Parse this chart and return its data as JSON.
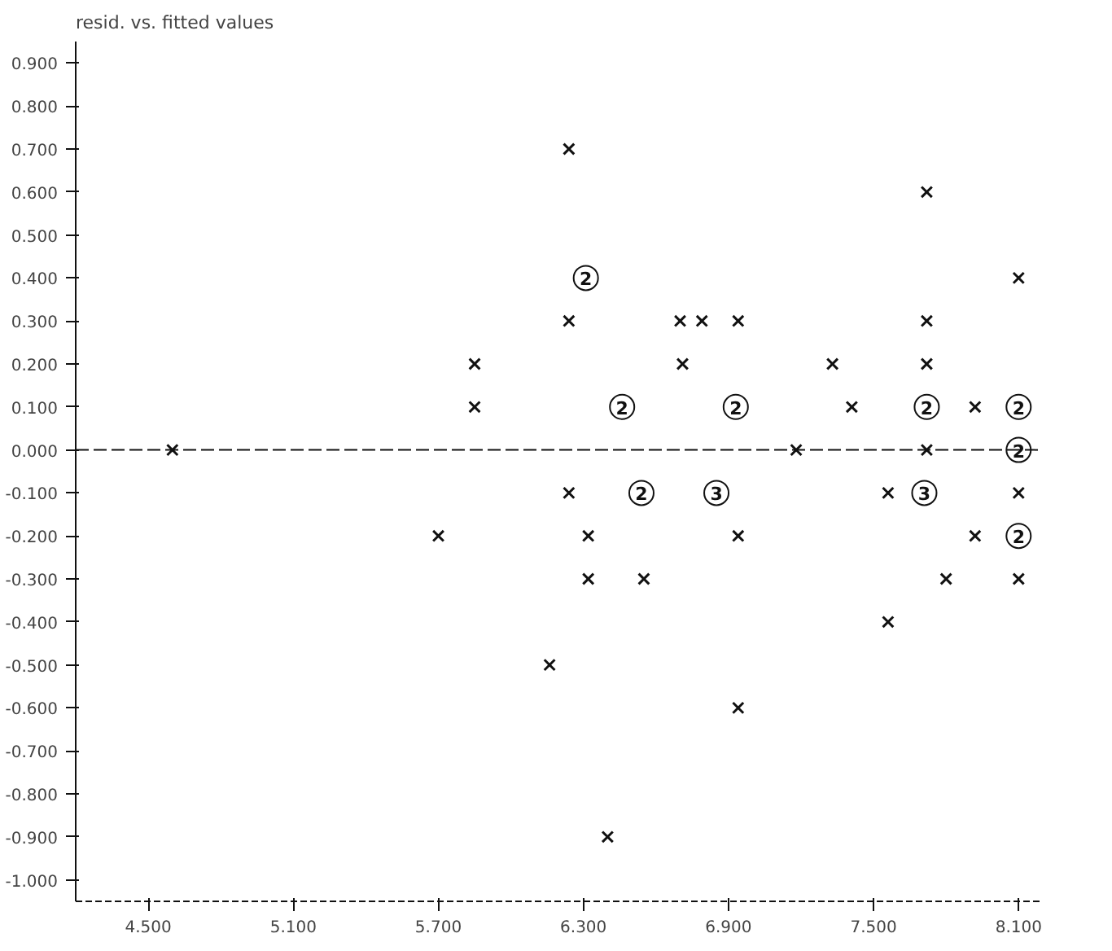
{
  "chart_data": {
    "type": "scatter",
    "title": "resid. vs. fitted values",
    "series": [
      {
        "color": "#111111",
        "marker": "cross",
        "x": [
          4.6,
          5.7,
          5.85,
          5.85,
          6.16,
          6.24,
          6.24,
          6.24,
          6.32,
          6.32,
          6.4,
          6.55,
          6.7,
          6.71,
          6.79,
          6.94,
          6.94,
          6.94,
          7.18,
          7.33,
          7.41,
          7.56,
          7.56,
          7.72,
          7.72,
          7.72,
          7.72,
          7.8,
          7.92,
          7.92,
          8.1,
          8.1,
          8.1
        ],
        "values": [
          0.0,
          -0.2,
          0.2,
          0.1,
          -0.5,
          0.7,
          0.3,
          -0.1,
          -0.2,
          -0.3,
          -0.9,
          -0.3,
          0.3,
          0.2,
          0.3,
          0.3,
          -0.2,
          -0.6,
          0.0,
          0.2,
          0.1,
          -0.1,
          -0.4,
          0.6,
          0.3,
          0.2,
          0.0,
          -0.3,
          0.1,
          -0.2,
          0.4,
          -0.1,
          -0.3
        ]
      },
      {
        "color": "#111111",
        "marker": "circle",
        "x": [
          6.31,
          6.46,
          6.93,
          7.72,
          8.1,
          8.1,
          6.54,
          6.85,
          7.71,
          8.1
        ],
        "values": [
          0.4,
          0.1,
          0.1,
          0.1,
          0.1,
          0.0,
          -0.1,
          -0.1,
          -0.1,
          -0.2
        ]
      }
    ],
    "annotations": [
      "2",
      "2",
      "2",
      "2",
      "2",
      "2",
      "2",
      "3",
      "3",
      "2"
    ],
    "ref_lines": [
      {
        "axis": "y",
        "value": 0,
        "line_style": "dashed",
        "color": "#111111"
      }
    ],
    "xlim": [
      4.2,
      8.2
    ],
    "ylim": [
      -1.05,
      0.95
    ],
    "xticks": [
      {
        "value": 4.5,
        "label": "4.500"
      },
      {
        "value": 5.1,
        "label": "5.100"
      },
      {
        "value": 5.7,
        "label": "5.700"
      },
      {
        "value": 6.3,
        "label": "6.300"
      },
      {
        "value": 6.9,
        "label": "6.900"
      },
      {
        "value": 7.5,
        "label": "7.500"
      },
      {
        "value": 8.1,
        "label": "8.100"
      }
    ],
    "yticks": [
      {
        "value": 0.9,
        "label": "0.900"
      },
      {
        "value": 0.8,
        "label": "0.800"
      },
      {
        "value": 0.7,
        "label": "0.700"
      },
      {
        "value": 0.6,
        "label": "0.600"
      },
      {
        "value": 0.5,
        "label": "0.500"
      },
      {
        "value": 0.4,
        "label": "0.400"
      },
      {
        "value": 0.3,
        "label": "0.300"
      },
      {
        "value": 0.2,
        "label": "0.200"
      },
      {
        "value": 0.1,
        "label": "0.100"
      },
      {
        "value": 0.0,
        "label": "0.000"
      },
      {
        "value": -0.1,
        "label": "-0.100"
      },
      {
        "value": -0.2,
        "label": "-0.200"
      },
      {
        "value": -0.3,
        "label": "-0.300"
      },
      {
        "value": -0.4,
        "label": "-0.400"
      },
      {
        "value": -0.5,
        "label": "-0.500"
      },
      {
        "value": -0.6,
        "label": "-0.600"
      },
      {
        "value": -0.7,
        "label": "-0.700"
      },
      {
        "value": -0.8,
        "label": "-0.800"
      },
      {
        "value": -0.9,
        "label": "-0.900"
      },
      {
        "value": -1.0,
        "label": "-1.000"
      }
    ],
    "grid": false
  }
}
